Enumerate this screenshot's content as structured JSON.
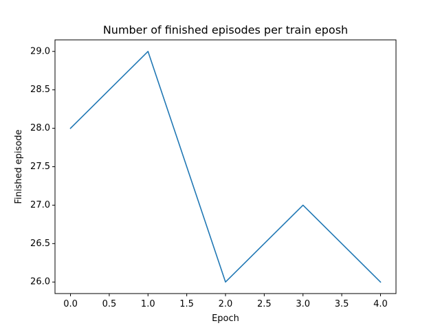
{
  "chart_data": {
    "type": "line",
    "title": "Number of finished episodes per train eposh",
    "xlabel": "Epoch",
    "ylabel": "Finished episode",
    "xlim": [
      -0.2,
      4.2
    ],
    "ylim": [
      25.85,
      29.15
    ],
    "x_ticks": [
      0.0,
      0.5,
      1.0,
      1.5,
      2.0,
      2.5,
      3.0,
      3.5,
      4.0
    ],
    "x_tick_labels": [
      "0.0",
      "0.5",
      "1.0",
      "1.5",
      "2.0",
      "2.5",
      "3.0",
      "3.5",
      "4.0"
    ],
    "y_ticks": [
      26.0,
      26.5,
      27.0,
      27.5,
      28.0,
      28.5,
      29.0
    ],
    "y_tick_labels": [
      "26.0",
      "26.5",
      "27.0",
      "27.5",
      "28.0",
      "28.5",
      "29.0"
    ],
    "grid": false,
    "series": [
      {
        "color": "#1f77b4",
        "x": [
          0,
          1,
          2,
          3,
          4
        ],
        "values": [
          28,
          29,
          26,
          27,
          26
        ]
      }
    ]
  }
}
